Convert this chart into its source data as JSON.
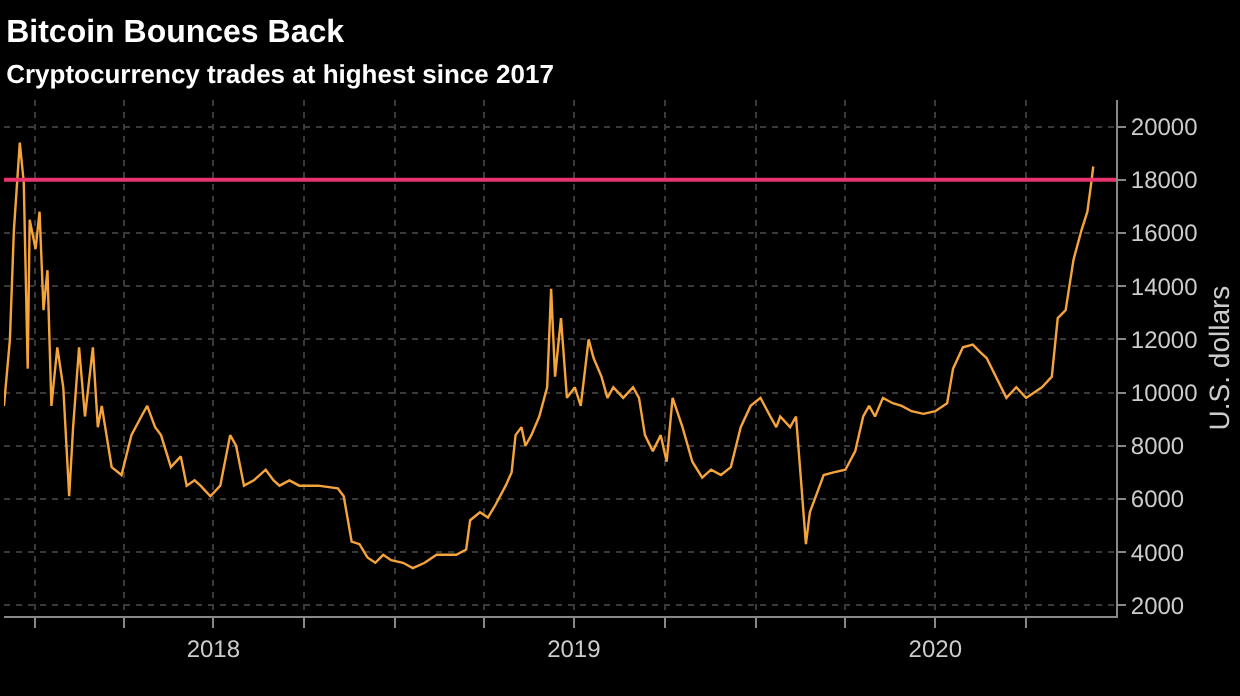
{
  "chart_data": {
    "type": "line",
    "title": "Bitcoin Bounces Back",
    "subtitle": "Cryptocurrency trades at highest since 2017",
    "ylabel": "U.S. dollars",
    "x": [
      "2017-12-01",
      "2017-12-07",
      "2017-12-11",
      "2017-12-17",
      "2017-12-21",
      "2017-12-25",
      "2017-12-27",
      "2018-01-02",
      "2018-01-06",
      "2018-01-10",
      "2018-01-14",
      "2018-01-18",
      "2018-01-24",
      "2018-01-30",
      "2018-02-05",
      "2018-02-09",
      "2018-02-15",
      "2018-02-21",
      "2018-03-01",
      "2018-03-06",
      "2018-03-10",
      "2018-03-20",
      "2018-03-30",
      "2018-04-09",
      "2018-04-19",
      "2018-04-25",
      "2018-05-03",
      "2018-05-09",
      "2018-05-19",
      "2018-05-29",
      "2018-06-04",
      "2018-06-12",
      "2018-06-18",
      "2018-06-28",
      "2018-07-08",
      "2018-07-18",
      "2018-07-24",
      "2018-08-01",
      "2018-08-11",
      "2018-08-23",
      "2018-08-31",
      "2018-09-06",
      "2018-09-16",
      "2018-09-26",
      "2018-10-15",
      "2018-11-04",
      "2018-11-10",
      "2018-11-18",
      "2018-11-26",
      "2018-12-04",
      "2018-12-12",
      "2018-12-20",
      "2018-12-28",
      "2019-01-09",
      "2019-01-19",
      "2019-01-31",
      "2019-02-12",
      "2019-03-04",
      "2019-03-14",
      "2019-03-18",
      "2019-03-28",
      "2019-04-05",
      "2019-04-13",
      "2019-04-23",
      "2019-04-29",
      "2019-05-03",
      "2019-05-09",
      "2019-05-13",
      "2019-05-19",
      "2019-05-27",
      "2019-06-04",
      "2019-06-08",
      "2019-06-12",
      "2019-06-18",
      "2019-06-24",
      "2019-07-02",
      "2019-07-08",
      "2019-07-16",
      "2019-07-21",
      "2019-07-29",
      "2019-08-04",
      "2019-08-10",
      "2019-08-20",
      "2019-08-30",
      "2019-09-05",
      "2019-09-11",
      "2019-09-19",
      "2019-09-27",
      "2019-10-03",
      "2019-10-09",
      "2019-10-19",
      "2019-10-29",
      "2019-11-08",
      "2019-11-17",
      "2019-11-27",
      "2019-12-07",
      "2019-12-17",
      "2019-12-27",
      "2020-01-06",
      "2020-01-16",
      "2020-01-22",
      "2020-01-26",
      "2020-02-05",
      "2020-02-11",
      "2020-02-15",
      "2020-02-21",
      "2020-02-25",
      "2020-03-02",
      "2020-03-10",
      "2020-03-20",
      "2020-04-01",
      "2020-04-11",
      "2020-04-19",
      "2020-04-25",
      "2020-05-01",
      "2020-05-09",
      "2020-05-19",
      "2020-05-28",
      "2020-06-07",
      "2020-06-19",
      "2020-07-01",
      "2020-07-13",
      "2020-07-19",
      "2020-07-29",
      "2020-08-08",
      "2020-08-16",
      "2020-08-22",
      "2020-09-11",
      "2020-09-21",
      "2020-10-01",
      "2020-10-17",
      "2020-10-27",
      "2020-11-02",
      "2020-11-10",
      "2020-11-18",
      "2020-11-26",
      "2020-12-02",
      "2020-12-06",
      "2020-12-08"
    ],
    "series": [
      {
        "color": "#f5a43a",
        "values": [
          9500,
          12000,
          16100,
          19400,
          17900,
          10900,
          16500,
          15400,
          16800,
          13100,
          14600,
          9500,
          11700,
          10200,
          6100,
          8700,
          11700,
          9100,
          11700,
          8700,
          9500,
          7200,
          6900,
          8400,
          9100,
          9500,
          8700,
          8400,
          7200,
          7600,
          6500,
          6700,
          6500,
          6100,
          6500,
          8400,
          8000,
          6500,
          6700,
          7100,
          6700,
          6500,
          6700,
          6500,
          6500,
          6400,
          6100,
          4400,
          4300,
          3800,
          3600,
          3900,
          3700,
          3600,
          3400,
          3600,
          3900,
          3900,
          4100,
          5200,
          5500,
          5300,
          5800,
          6500,
          7000,
          8400,
          8700,
          8000,
          8400,
          9100,
          10200,
          13900,
          10600,
          12800,
          9800,
          10200,
          9500,
          12000,
          11300,
          10600,
          9800,
          10200,
          9800,
          10200,
          9800,
          8400,
          7800,
          8400,
          7400,
          9800,
          8700,
          7400,
          6800,
          7100,
          6900,
          7200,
          8700,
          9500,
          9800,
          9100,
          8700,
          9100,
          8700,
          9100,
          7200,
          4300,
          5500,
          6100,
          6900,
          7000,
          7100,
          7800,
          9100,
          9500,
          9100,
          9800,
          9600,
          9500,
          9300,
          9200,
          9300,
          9600,
          10900,
          11700,
          11800,
          11500,
          11300,
          9800,
          10200,
          9800,
          10200,
          10600,
          12800,
          13100,
          15000,
          16100,
          16800,
          17900,
          18500
        ]
      }
    ],
    "xlim": [
      "2017-12-01",
      "2020-12-31"
    ],
    "xticks": [
      {
        "value": "2018-01-01",
        "label": null
      },
      {
        "value": "2018-04-01",
        "label": null
      },
      {
        "value": "2018-07-01",
        "label": "2018"
      },
      {
        "value": "2018-10-01",
        "label": null
      },
      {
        "value": "2019-01-01",
        "label": null
      },
      {
        "value": "2019-04-01",
        "label": null
      },
      {
        "value": "2019-07-01",
        "label": "2019"
      },
      {
        "value": "2019-10-01",
        "label": null
      },
      {
        "value": "2020-01-01",
        "label": null
      },
      {
        "value": "2020-04-01",
        "label": null
      },
      {
        "value": "2020-07-01",
        "label": "2020"
      },
      {
        "value": "2020-10-01",
        "label": null
      }
    ],
    "ylim": [
      1600,
      21000
    ],
    "yticks": [
      2000,
      4000,
      6000,
      8000,
      10000,
      12000,
      14000,
      16000,
      18000,
      20000
    ],
    "ref_lines": [
      {
        "axis": "y",
        "value": 18000,
        "color": "#e8336e"
      }
    ],
    "grid": true
  }
}
